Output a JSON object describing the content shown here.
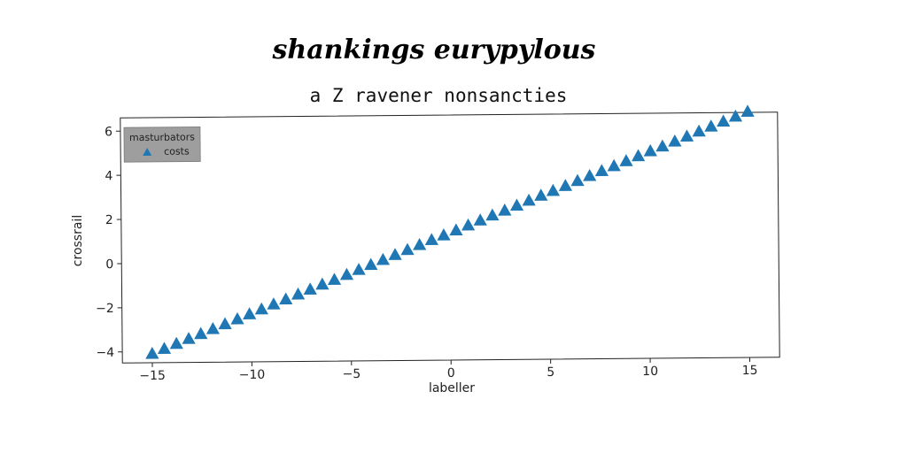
{
  "chart_data": {
    "type": "scatter",
    "title": "shankings eurypylous",
    "subtitle": "a Z ravener nonsancties",
    "xlabel": "labeller",
    "ylabel": "crossrail",
    "xlim": [
      -16.5,
      16.5
    ],
    "ylim": [
      -4.5,
      6.6
    ],
    "xticks": [
      -15,
      -10,
      -5,
      0,
      5,
      10,
      15
    ],
    "yticks": [
      -4,
      -2,
      0,
      2,
      4,
      6
    ],
    "xtick_labels": [
      "−15",
      "−10",
      "−5",
      "0",
      "5",
      "10",
      "15"
    ],
    "ytick_labels": [
      "−4",
      "−2",
      "0",
      "2",
      "4",
      "6"
    ],
    "grid": false,
    "legend": {
      "title": "masturbators",
      "placement": "top-left"
    },
    "series": [
      {
        "name": "costs",
        "marker": "triangle-up",
        "color": "#1f77b4",
        "x_start": -15,
        "x_end": 15,
        "count": 50,
        "x": [
          -15,
          -14.39,
          -13.78,
          -13.16,
          -12.55,
          -11.94,
          -11.33,
          -10.71,
          -10.1,
          -9.49,
          -8.88,
          -8.27,
          -7.65,
          -7.04,
          -6.43,
          -5.82,
          -5.2,
          -4.59,
          -3.98,
          -3.37,
          -2.76,
          -2.14,
          -1.53,
          -0.92,
          -0.31,
          0.31,
          0.92,
          1.53,
          2.14,
          2.76,
          3.37,
          3.98,
          4.59,
          5.2,
          5.82,
          6.43,
          7.04,
          7.65,
          8.27,
          8.88,
          9.49,
          10.1,
          10.71,
          11.33,
          11.94,
          12.55,
          13.16,
          13.78,
          14.39,
          15
        ],
        "y": [
          -4.1,
          -3.88,
          -3.66,
          -3.44,
          -3.22,
          -3.0,
          -2.79,
          -2.57,
          -2.35,
          -2.13,
          -1.91,
          -1.69,
          -1.47,
          -1.25,
          -1.03,
          -0.82,
          -0.6,
          -0.38,
          -0.16,
          0.06,
          0.28,
          0.5,
          0.72,
          0.94,
          1.15,
          1.37,
          1.59,
          1.81,
          2.03,
          2.25,
          2.47,
          2.69,
          2.91,
          3.12,
          3.34,
          3.56,
          3.78,
          4.0,
          4.22,
          4.44,
          4.66,
          4.88,
          5.09,
          5.31,
          5.53,
          5.75,
          5.97,
          6.19,
          6.41,
          6.63
        ]
      }
    ]
  }
}
